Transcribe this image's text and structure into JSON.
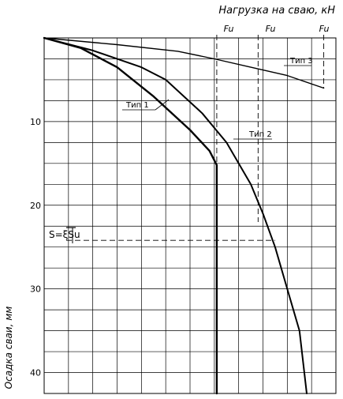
{
  "chart_data": {
    "type": "line",
    "title": "",
    "xlabel": "Нагрузка на сваю, кН",
    "ylabel": "Осадка сваи, мм",
    "y_inverted": true,
    "xlim": [
      0,
      12
    ],
    "ylim": [
      0,
      42.5
    ],
    "y_ticks": [
      10,
      20,
      30,
      40
    ],
    "grid": true,
    "series": [
      {
        "name": "Тип 1",
        "points": [
          [
            0,
            0
          ],
          [
            1.5,
            1.2
          ],
          [
            3,
            3.5
          ],
          [
            4.5,
            7
          ],
          [
            6,
            11
          ],
          [
            6.8,
            13.5
          ],
          [
            7.1,
            15.2
          ],
          [
            7.1,
            42.5
          ]
        ]
      },
      {
        "name": "Тип 2",
        "points": [
          [
            0,
            0
          ],
          [
            2,
            1.5
          ],
          [
            4,
            3.5
          ],
          [
            5,
            5
          ],
          [
            6.5,
            9
          ],
          [
            7.5,
            12.5
          ],
          [
            8.5,
            17.5
          ],
          [
            9,
            21
          ],
          [
            9.5,
            25
          ],
          [
            10,
            30
          ],
          [
            10.5,
            35
          ],
          [
            10.8,
            42.5
          ]
        ]
      },
      {
        "name": "Тип 3",
        "points": [
          [
            0,
            0
          ],
          [
            3,
            0.8
          ],
          [
            5.5,
            1.6
          ],
          [
            7,
            2.5
          ],
          [
            8.5,
            3.5
          ],
          [
            10,
            4.5
          ],
          [
            11.5,
            6
          ]
        ]
      }
    ],
    "series_labels": {
      "t1": "Тип 1",
      "t2": "Тип 2",
      "t3": "Тип 3"
    },
    "fu_label": "Fu",
    "fu_values": [
      7.1,
      8.8,
      11.5
    ],
    "fu_drop_to": [
      15.2,
      22,
      6
    ],
    "s_label": "S=ξSu",
    "s_value": 24.2,
    "s_x_end": 9.5
  }
}
